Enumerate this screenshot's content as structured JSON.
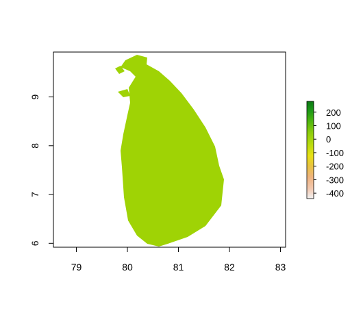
{
  "chart_data": {
    "type": "heatmap",
    "title": "",
    "xlabel": "",
    "ylabel": "",
    "xlim": [
      78.55,
      83.1
    ],
    "ylim": [
      5.92,
      9.92
    ],
    "x_ticks": [
      "79",
      "80",
      "81",
      "82",
      "83"
    ],
    "y_ticks": [
      "6",
      "7",
      "8",
      "9"
    ],
    "grid": false,
    "raster_color": "#9fd305",
    "legend": {
      "placement": "right",
      "range": [
        -440,
        280
      ],
      "ticks": [
        "200",
        "100",
        "0",
        "-100",
        "-200",
        "-300",
        "-400"
      ],
      "colors": [
        "#f2f2f2",
        "#f2c9b1",
        "#efb37f",
        "#e8c43e",
        "#e8e015",
        "#b8db0e",
        "#8ccd0c",
        "#4db50f",
        "#1f9a17",
        "#0b7a14"
      ]
    }
  }
}
